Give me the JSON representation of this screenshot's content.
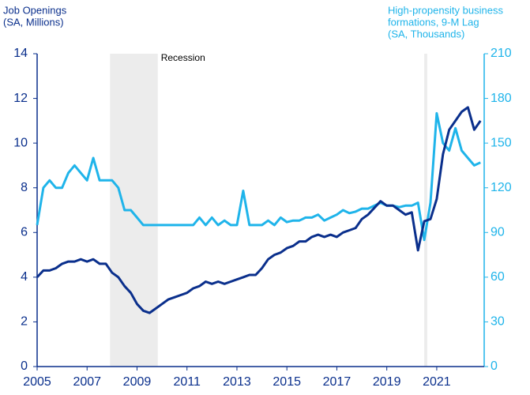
{
  "chart_data": {
    "type": "line",
    "y_label": [
      "Job Openings",
      "(SA, Millions)"
    ],
    "y2_label": [
      "High-propensity business",
      "formations, 9-M Lag",
      "(SA, Thousands)"
    ],
    "annotation": "Recession",
    "recessions": [
      [
        2007.92,
        2009.83
      ],
      [
        2020.5,
        2020.62
      ]
    ],
    "x": [
      2005,
      2005.25,
      2005.5,
      2005.75,
      2006,
      2006.25,
      2006.5,
      2006.75,
      2007,
      2007.25,
      2007.5,
      2007.75,
      2008,
      2008.25,
      2008.5,
      2008.75,
      2009,
      2009.25,
      2009.5,
      2009.75,
      2010,
      2010.25,
      2010.5,
      2010.75,
      2011,
      2011.25,
      2011.5,
      2011.75,
      2012,
      2012.25,
      2012.5,
      2012.75,
      2013,
      2013.25,
      2013.5,
      2013.75,
      2014,
      2014.25,
      2014.5,
      2014.75,
      2015,
      2015.25,
      2015.5,
      2015.75,
      2016,
      2016.25,
      2016.5,
      2016.75,
      2017,
      2017.25,
      2017.5,
      2017.75,
      2018,
      2018.25,
      2018.5,
      2018.75,
      2019,
      2019.25,
      2019.5,
      2019.75,
      2020,
      2020.25,
      2020.5,
      2020.75,
      2021,
      2021.25,
      2021.5,
      2021.75,
      2022,
      2022.25,
      2022.5,
      2022.75
    ],
    "series": [
      {
        "color": "#0a2f8c",
        "axis": "y",
        "values": [
          4.0,
          4.3,
          4.3,
          4.4,
          4.6,
          4.7,
          4.7,
          4.8,
          4.7,
          4.8,
          4.6,
          4.6,
          4.2,
          4.0,
          3.6,
          3.3,
          2.8,
          2.5,
          2.4,
          2.6,
          2.8,
          3.0,
          3.1,
          3.2,
          3.3,
          3.5,
          3.6,
          3.8,
          3.7,
          3.8,
          3.7,
          3.8,
          3.9,
          4.0,
          4.1,
          4.1,
          4.4,
          4.8,
          5.0,
          5.1,
          5.3,
          5.4,
          5.6,
          5.6,
          5.8,
          5.9,
          5.8,
          5.9,
          5.8,
          6.0,
          6.1,
          6.2,
          6.6,
          6.8,
          7.1,
          7.4,
          7.2,
          7.2,
          7.0,
          6.8,
          6.9,
          5.2,
          6.5,
          6.6,
          7.5,
          9.5,
          10.6,
          11.0,
          11.4,
          11.6,
          10.6,
          11.0
        ]
      },
      {
        "color": "#1fb4ea",
        "axis": "y2",
        "values": [
          95,
          120,
          125,
          120,
          120,
          130,
          135,
          130,
          125,
          140,
          125,
          125,
          125,
          120,
          105,
          105,
          100,
          95,
          95,
          95,
          95,
          95,
          95,
          95,
          95,
          95,
          100,
          95,
          100,
          95,
          98,
          95,
          95,
          118,
          95,
          95,
          95,
          98,
          95,
          100,
          97,
          98,
          98,
          100,
          100,
          102,
          98,
          100,
          102,
          105,
          103,
          104,
          106,
          106,
          108,
          110,
          108,
          108,
          107,
          108,
          108,
          110,
          85,
          110,
          170,
          150,
          145,
          160,
          145,
          140,
          135,
          137
        ]
      }
    ],
    "xlim": [
      2005,
      2022.9
    ],
    "xticks": [
      2005,
      2007,
      2009,
      2011,
      2013,
      2015,
      2017,
      2019,
      2021
    ],
    "ylim": [
      0,
      14
    ],
    "yticks": [
      0,
      2,
      4,
      6,
      8,
      10,
      12,
      14
    ],
    "y2lim": [
      0,
      210
    ],
    "y2ticks": [
      0,
      30,
      60,
      90,
      120,
      150,
      180,
      210
    ]
  }
}
